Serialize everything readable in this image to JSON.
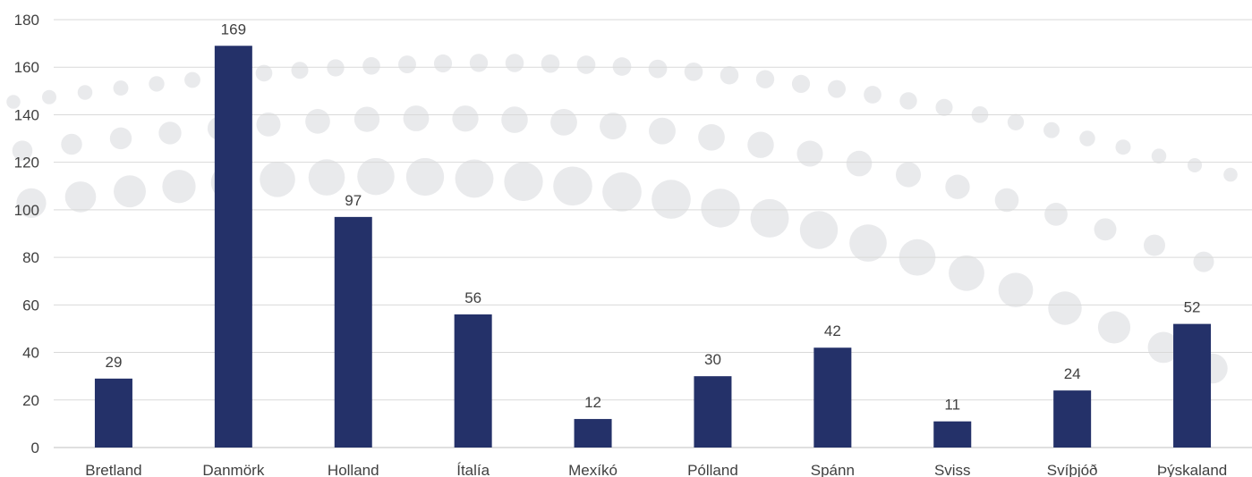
{
  "chart_data": {
    "type": "bar",
    "categories": [
      "Bretland",
      "Danmörk",
      "Holland",
      "Ítalía",
      "Mexíkó",
      "Pólland",
      "Spánn",
      "Sviss",
      "Svíþjóð",
      "Þýskaland"
    ],
    "values": [
      29,
      169,
      97,
      56,
      12,
      30,
      42,
      11,
      24,
      52
    ],
    "ylim": [
      0,
      180
    ],
    "yticks": [
      0,
      20,
      40,
      60,
      80,
      100,
      120,
      140,
      160,
      180
    ],
    "grid": true,
    "legend": "none",
    "bar_color": "#243169"
  }
}
